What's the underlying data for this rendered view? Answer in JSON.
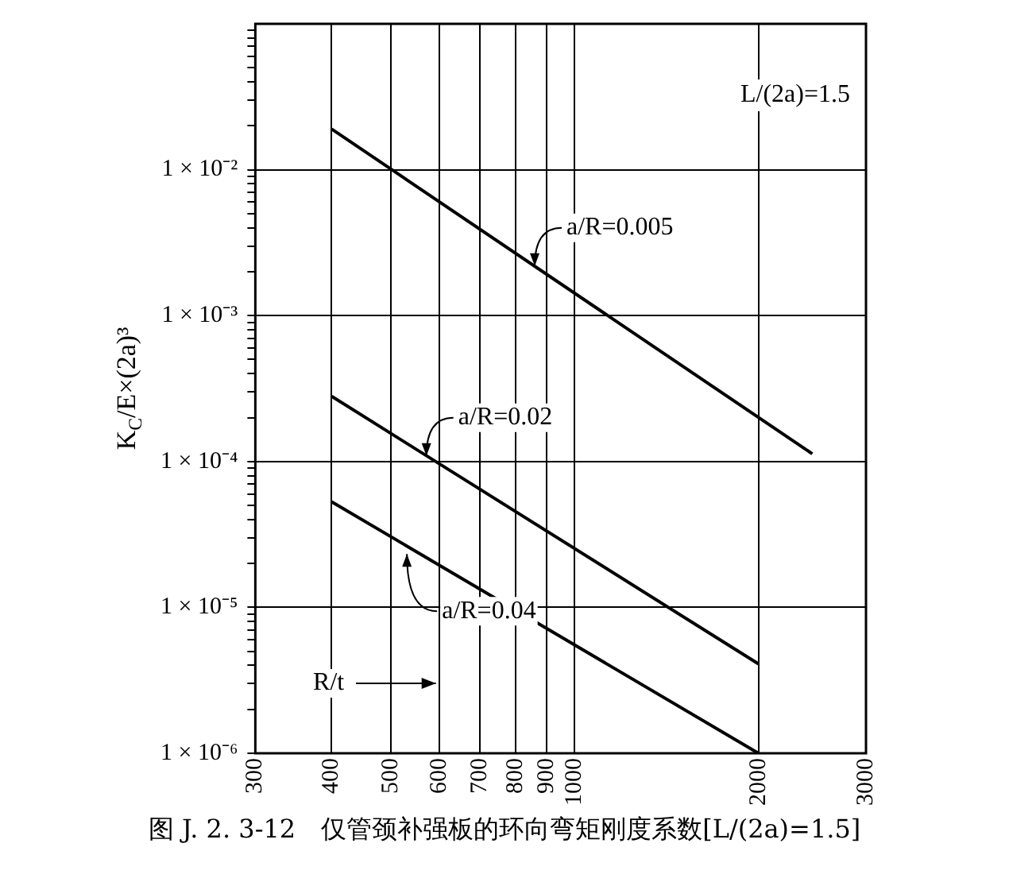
{
  "chart_data": {
    "type": "line",
    "ylabel": "K$_{C}$/E×(2a)³",
    "log": "xy",
    "grid": true,
    "legend": false,
    "marker": "none",
    "line_style": "solid",
    "xlim": [
      300,
      3000
    ],
    "xticks": [
      300,
      400,
      500,
      600,
      700,
      800,
      900,
      1000,
      2000,
      3000
    ],
    "ylim": [
      1e-06,
      0.1
    ],
    "yticks": [
      {
        "value": 1e-06,
        "label": "1 × 10⁻⁶"
      },
      {
        "value": 2e-06,
        "label": null
      },
      {
        "value": 3e-06,
        "label": null
      },
      {
        "value": 4e-06,
        "label": null
      },
      {
        "value": 5e-06,
        "label": null
      },
      {
        "value": 6e-06,
        "label": null
      },
      {
        "value": 7e-06,
        "label": null
      },
      {
        "value": 8e-06,
        "label": null
      },
      {
        "value": 9e-06,
        "label": null
      },
      {
        "value": 1e-05,
        "label": "1 × 10⁻⁵"
      },
      {
        "value": 2e-05,
        "label": null
      },
      {
        "value": 3e-05,
        "label": null
      },
      {
        "value": 4e-05,
        "label": null
      },
      {
        "value": 5e-05,
        "label": null
      },
      {
        "value": 6e-05,
        "label": null
      },
      {
        "value": 7e-05,
        "label": null
      },
      {
        "value": 8e-05,
        "label": null
      },
      {
        "value": 9e-05,
        "label": null
      },
      {
        "value": 0.0001,
        "label": "1 × 10⁻⁴"
      },
      {
        "value": 0.0002,
        "label": null
      },
      {
        "value": 0.0003,
        "label": null
      },
      {
        "value": 0.0004,
        "label": null
      },
      {
        "value": 0.0005,
        "label": null
      },
      {
        "value": 0.0006,
        "label": null
      },
      {
        "value": 0.0007,
        "label": null
      },
      {
        "value": 0.0008,
        "label": null
      },
      {
        "value": 0.0009,
        "label": null
      },
      {
        "value": 0.001,
        "label": "1 × 10⁻³"
      },
      {
        "value": 0.002,
        "label": null
      },
      {
        "value": 0.003,
        "label": null
      },
      {
        "value": 0.004,
        "label": null
      },
      {
        "value": 0.005,
        "label": null
      },
      {
        "value": 0.006,
        "label": null
      },
      {
        "value": 0.007,
        "label": null
      },
      {
        "value": 0.008,
        "label": null
      },
      {
        "value": 0.009,
        "label": null
      },
      {
        "value": 0.01,
        "label": "1 × 10⁻²"
      },
      {
        "value": 0.02,
        "label": null
      },
      {
        "value": 0.03,
        "label": null
      },
      {
        "value": 0.04,
        "label": null
      },
      {
        "value": 0.05,
        "label": null
      },
      {
        "value": 0.06,
        "label": null
      },
      {
        "value": 0.07,
        "label": null
      },
      {
        "value": 0.08,
        "label": null
      },
      {
        "value": 0.09,
        "label": null
      }
    ],
    "series": [
      {
        "color": "#000000",
        "x": [
          400,
          2450
        ],
        "values": [
          0.019,
          0.000113
        ]
      },
      {
        "color": "#000000",
        "x": [
          400,
          2000
        ],
        "values": [
          0.00028,
          4.1e-06
        ]
      },
      {
        "color": "#000000",
        "x": [
          400,
          2000
        ],
        "values": [
          5.3e-05,
          1e-06
        ]
      }
    ],
    "annotations": [
      "L/(2a)=1.5",
      {
        "text": "a/R=0.005",
        "x": 850,
        "y": 0.0023
      },
      {
        "text": "a/R=0.02",
        "x": 565,
        "y": 0.000115
      },
      {
        "text": "a/R=0.04",
        "x": 525,
        "y": 2.7e-05
      },
      "R/t",
      "图 J. 2. 3-12　仅管颈补强板的环向弯矩刚度系数[L/(2a)=1.5]"
    ]
  }
}
